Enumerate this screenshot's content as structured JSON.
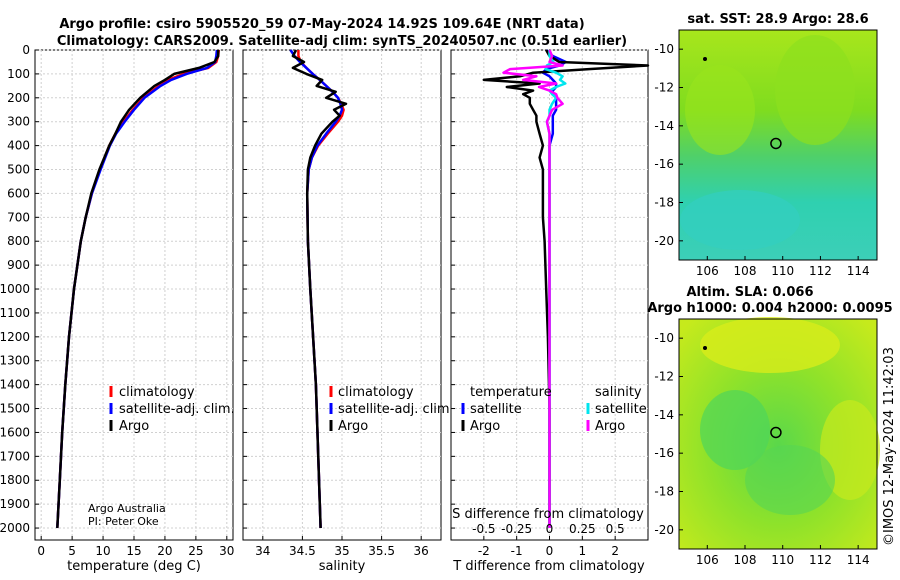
{
  "title": {
    "line1": "Argo profile: csiro 5905520_59 07-May-2024 14.92S 109.64E (NRT data)",
    "line2": "Climatology: CARS2009. Satellite-adj clim: synTS_20240507.nc (0.51d earlier)"
  },
  "map_titles": {
    "sst": "sat. SST: 28.9 Argo: 28.6",
    "sla_line1": "Altim. SLA: 0.066",
    "sla_line2": "Argo h1000: 0.004 h2000: 0.0095"
  },
  "credit": {
    "line1": "Argo Australia",
    "line2": "PI: Peter Oke"
  },
  "timestamp": "©IMOS 12-May-2024 11:42:03",
  "colors": {
    "climatology": "#ff0000",
    "satellite": "#0000ff",
    "argo": "#000000",
    "sat_salinity": "#00e5ee",
    "argo_salinity": "#ff00ff"
  },
  "legend_temp_panel": [
    "climatology",
    "satellite-adj. clim.",
    "Argo"
  ],
  "legend_sal_panel": [
    "climatology",
    "satellite-adj. clim.",
    "Argo"
  ],
  "legend_diff_panel": {
    "temperature_header": "temperature",
    "salinity_header": "salinity",
    "temperature_items": [
      "satellite",
      "Argo"
    ],
    "salinity_items": [
      "satellite",
      "Argo"
    ]
  },
  "chart_data": [
    {
      "type": "line",
      "name": "temperature profile",
      "xlabel": "temperature (deg C)",
      "ylabel": "",
      "xlim": [
        -1,
        31
      ],
      "ylim": [
        2050,
        0
      ],
      "xticks": [
        0,
        5,
        10,
        15,
        20,
        25,
        30
      ],
      "yticks": [
        0,
        100,
        200,
        300,
        400,
        500,
        600,
        700,
        800,
        900,
        1000,
        1100,
        1200,
        1300,
        1400,
        1500,
        1600,
        1700,
        1800,
        1900,
        2000
      ],
      "depth": [
        0,
        25,
        50,
        75,
        100,
        125,
        150,
        200,
        250,
        300,
        350,
        400,
        500,
        600,
        700,
        800,
        1000,
        1200,
        1400,
        1600,
        1800,
        2000
      ],
      "series": [
        {
          "name": "climatology",
          "values": [
            28.7,
            28.6,
            28.3,
            27.0,
            23.0,
            20.5,
            19.0,
            16.5,
            14.8,
            13.3,
            12.0,
            11.0,
            9.5,
            8.2,
            7.2,
            6.4,
            5.3,
            4.5,
            3.9,
            3.4,
            3.0,
            2.6
          ]
        },
        {
          "name": "satellite-adj. clim.",
          "values": [
            28.4,
            28.3,
            28.1,
            26.8,
            23.5,
            21.0,
            19.3,
            16.7,
            15.0,
            13.5,
            12.1,
            11.1,
            9.6,
            8.2,
            7.2,
            6.4,
            5.3,
            4.5,
            3.9,
            3.4,
            3.0,
            2.6
          ]
        },
        {
          "name": "Argo",
          "values": [
            28.6,
            28.6,
            28.0,
            25.5,
            21.5,
            20.0,
            18.3,
            16.0,
            14.2,
            12.9,
            12.0,
            11.0,
            9.4,
            8.1,
            7.2,
            6.4,
            5.3,
            4.5,
            3.9,
            3.4,
            3.0,
            2.6
          ]
        }
      ]
    },
    {
      "type": "line",
      "name": "salinity profile",
      "xlabel": "salinity",
      "ylabel": "",
      "xlim": [
        33.75,
        36.25
      ],
      "ylim": [
        2050,
        0
      ],
      "xticks": [
        34,
        34.5,
        35,
        35.5,
        36
      ],
      "depth": [
        0,
        25,
        50,
        75,
        100,
        125,
        150,
        175,
        200,
        225,
        250,
        275,
        300,
        350,
        400,
        450,
        500,
        600,
        800,
        1000,
        1400,
        2000
      ],
      "series": [
        {
          "name": "climatology",
          "values": [
            34.45,
            34.45,
            34.48,
            34.55,
            34.63,
            34.72,
            34.8,
            34.88,
            34.95,
            34.99,
            35.02,
            35.0,
            34.95,
            34.82,
            34.7,
            34.62,
            34.58,
            34.56,
            34.57,
            34.6,
            34.67,
            34.73
          ]
        },
        {
          "name": "satellite-adj. clim.",
          "values": [
            34.35,
            34.4,
            34.47,
            34.55,
            34.63,
            34.72,
            34.8,
            34.88,
            34.95,
            34.98,
            35.0,
            34.97,
            34.92,
            34.8,
            34.69,
            34.62,
            34.58,
            34.56,
            34.57,
            34.6,
            34.67,
            34.73
          ]
        },
        {
          "name": "Argo",
          "values": [
            34.42,
            34.38,
            34.52,
            34.38,
            34.55,
            34.75,
            34.68,
            34.92,
            34.8,
            35.05,
            34.9,
            34.97,
            34.88,
            34.74,
            34.66,
            34.6,
            34.57,
            34.56,
            34.57,
            34.6,
            34.67,
            34.73
          ]
        }
      ]
    },
    {
      "type": "line",
      "name": "difference from climatology",
      "xlabel": "T difference from climatology",
      "x2label": "S difference from climatology",
      "xlim": [
        -3,
        3
      ],
      "ylim": [
        2050,
        0
      ],
      "xticks": [
        -2,
        -1,
        0,
        1,
        2
      ],
      "x2ticks": [
        -0.5,
        -0.25,
        0,
        0.25,
        0.5
      ],
      "x2tick_labels": [
        "-0.5",
        "-0.25",
        "0",
        "0.25",
        "0.5"
      ],
      "depth": [
        0,
        25,
        50,
        65,
        80,
        95,
        110,
        125,
        140,
        155,
        170,
        185,
        200,
        225,
        250,
        275,
        300,
        350,
        400,
        450,
        500,
        600,
        700,
        800,
        1000,
        1200,
        1500,
        1800,
        2000
      ],
      "series": [
        {
          "name": "temperature satellite",
          "values": [
            -0.1,
            0.1,
            0.5,
            0.3,
            -0.1,
            -0.2,
            0.0,
            0.1,
            0.2,
            0.2,
            0.1,
            0.1,
            0.2,
            0.2,
            0.2,
            0.1,
            0.1,
            0.1,
            0.0,
            0.0,
            0.0,
            0.0,
            0.0,
            0.0,
            0.0,
            0.0,
            0.0,
            0.0,
            0.0
          ]
        },
        {
          "name": "temperature Argo",
          "values": [
            -0.1,
            0.0,
            0.3,
            3.0,
            1.2,
            -0.5,
            -0.9,
            -2.0,
            -0.3,
            -1.3,
            -0.5,
            -0.8,
            -0.6,
            -0.6,
            -0.5,
            -0.4,
            -0.4,
            -0.3,
            -0.2,
            -0.3,
            -0.2,
            -0.2,
            -0.2,
            -0.15,
            -0.1,
            -0.05,
            0.0,
            0.0,
            0.0
          ]
        },
        {
          "name": "salinity satellite",
          "values": [
            0.0,
            0.0,
            0.03,
            -0.02,
            -0.03,
            0.05,
            0.1,
            0.08,
            0.12,
            0.05,
            0.0,
            0.02,
            0.05,
            0.02,
            0.0,
            0.0,
            -0.02,
            0.0,
            0.0,
            0.0,
            0.0,
            0.0,
            0.0,
            0.0,
            0.0,
            0.0,
            0.0,
            0.0,
            0.0
          ]
        },
        {
          "name": "salinity Argo",
          "values": [
            0.0,
            0.02,
            0.0,
            0.1,
            -0.3,
            -0.35,
            -0.1,
            -0.2,
            0.05,
            -0.08,
            0.0,
            0.05,
            0.06,
            0.1,
            0.02,
            0.0,
            -0.02,
            0.0,
            0.0,
            0.0,
            0.0,
            0.0,
            0.0,
            0.0,
            0.0,
            0.0,
            0.0,
            0.0,
            0.0
          ]
        }
      ]
    },
    {
      "type": "heatmap",
      "name": "satellite SST map",
      "xlim": [
        104.5,
        115
      ],
      "ylim": [
        -21,
        -9
      ],
      "xticks": [
        106,
        108,
        110,
        112,
        114
      ],
      "yticks": [
        -10,
        -12,
        -14,
        -16,
        -18,
        -20
      ],
      "argo_position": [
        109.64,
        -14.92
      ]
    },
    {
      "type": "heatmap",
      "name": "altimetry SLA map",
      "xlim": [
        104.5,
        115
      ],
      "ylim": [
        -21,
        -9
      ],
      "xticks": [
        106,
        108,
        110,
        112,
        114
      ],
      "yticks": [
        -10,
        -12,
        -14,
        -16,
        -18,
        -20
      ],
      "argo_position": [
        109.64,
        -14.92
      ]
    }
  ]
}
